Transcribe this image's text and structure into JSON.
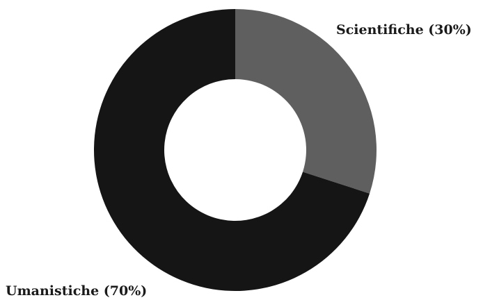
{
  "chart_data": {
    "type": "pie",
    "donut": true,
    "title": "",
    "categories": [
      "Scientifiche",
      "Umanistiche"
    ],
    "values": [
      30,
      70
    ],
    "labels": [
      "Scientifiche (30%)",
      "Umanistiche (70%)"
    ],
    "colors": [
      "#5f5f5f",
      "#151515"
    ],
    "start_angle": "top",
    "direction": "clockwise",
    "legend": "none"
  }
}
